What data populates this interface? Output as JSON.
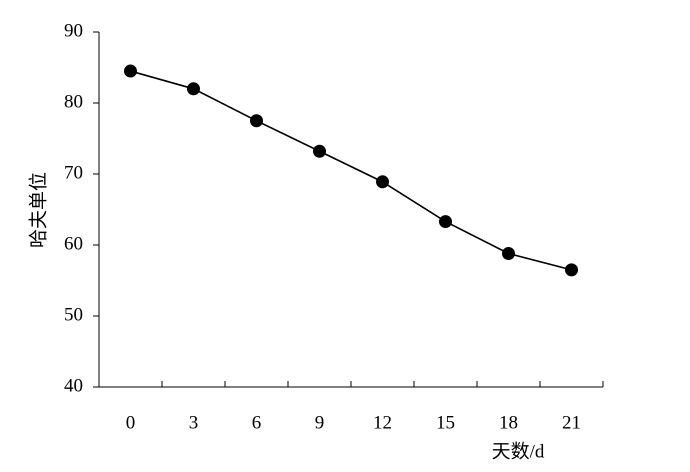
{
  "chart_data": {
    "type": "line",
    "x_label": "天数/d",
    "y_label": "哈夫单位",
    "categories": [
      "0",
      "3",
      "6",
      "9",
      "12",
      "15",
      "18",
      "21"
    ],
    "values": [
      84.5,
      82,
      77.5,
      73.2,
      68.9,
      63.3,
      58.8,
      56.5
    ],
    "color": "#000000",
    "ylim": [
      40,
      90
    ],
    "yticks": [
      40,
      50,
      60,
      70,
      80,
      90
    ],
    "grid": false
  }
}
